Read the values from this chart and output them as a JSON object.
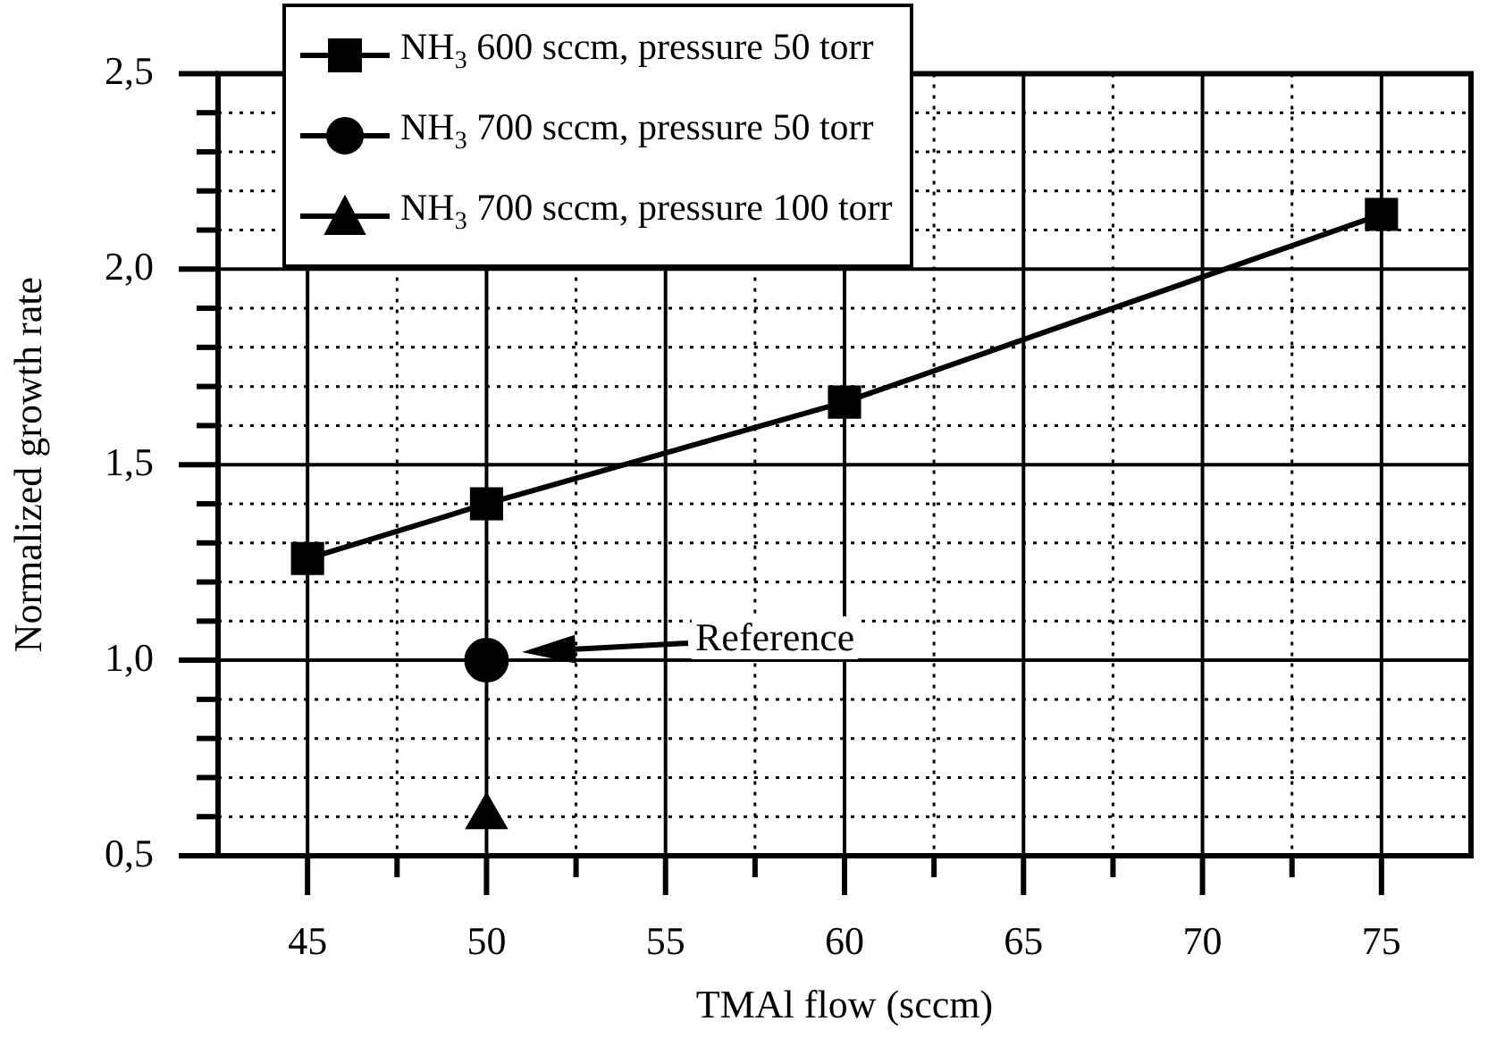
{
  "chart_data": {
    "type": "line",
    "xlabel": "TMAl flow (sccm)",
    "ylabel": "Normalized growth rate",
    "xlim": [
      42.5,
      77.5
    ],
    "ylim": [
      0.5,
      2.5
    ],
    "xticks": [
      45,
      {
        "value": 47.5,
        "label": null
      },
      50,
      {
        "value": 52.5,
        "label": null
      },
      55,
      {
        "value": 57.5,
        "label": null
      },
      60,
      {
        "value": 62.5,
        "label": null
      },
      65,
      {
        "value": 67.5,
        "label": null
      },
      70,
      {
        "value": 72.5,
        "label": null
      },
      75
    ],
    "yticks": [
      {
        "value": 0.5,
        "label": "0,5"
      },
      {
        "value": 0.6,
        "label": null
      },
      {
        "value": 0.7,
        "label": null
      },
      {
        "value": 0.8,
        "label": null
      },
      {
        "value": 0.9,
        "label": null
      },
      {
        "value": 1.0,
        "label": "1,0"
      },
      {
        "value": 1.1,
        "label": null
      },
      {
        "value": 1.2,
        "label": null
      },
      {
        "value": 1.3,
        "label": null
      },
      {
        "value": 1.4,
        "label": null
      },
      {
        "value": 1.5,
        "label": "1,5"
      },
      {
        "value": 1.6,
        "label": null
      },
      {
        "value": 1.7,
        "label": null
      },
      {
        "value": 1.8,
        "label": null
      },
      {
        "value": 1.9,
        "label": null
      },
      {
        "value": 2.0,
        "label": "2,0"
      },
      {
        "value": 2.1,
        "label": null
      },
      {
        "value": 2.2,
        "label": null
      },
      {
        "value": 2.3,
        "label": null
      },
      {
        "value": 2.4,
        "label": null
      },
      {
        "value": 2.5,
        "label": "2,5"
      }
    ],
    "grid": true,
    "legend": "top left",
    "series": [
      {
        "name": "NH$_{3}$ 600 sccm, pressure 50 torr",
        "color": "#000000",
        "marker": "square",
        "x": [
          45,
          50,
          60,
          75
        ],
        "values": [
          1.26,
          1.4,
          1.66,
          2.14
        ]
      },
      {
        "name": "NH$_{3}$ 700 sccm, pressure 50 torr",
        "color": "#000000",
        "marker": "circle",
        "x": [
          50
        ],
        "values": [
          1.0
        ]
      },
      {
        "name": "NH$_{3}$ 700 sccm, pressure 100 torr",
        "color": "#000000",
        "marker": "triangle",
        "x": [
          50
        ],
        "values": [
          0.6
        ]
      }
    ],
    "annotations": [
      "Reference"
    ]
  }
}
